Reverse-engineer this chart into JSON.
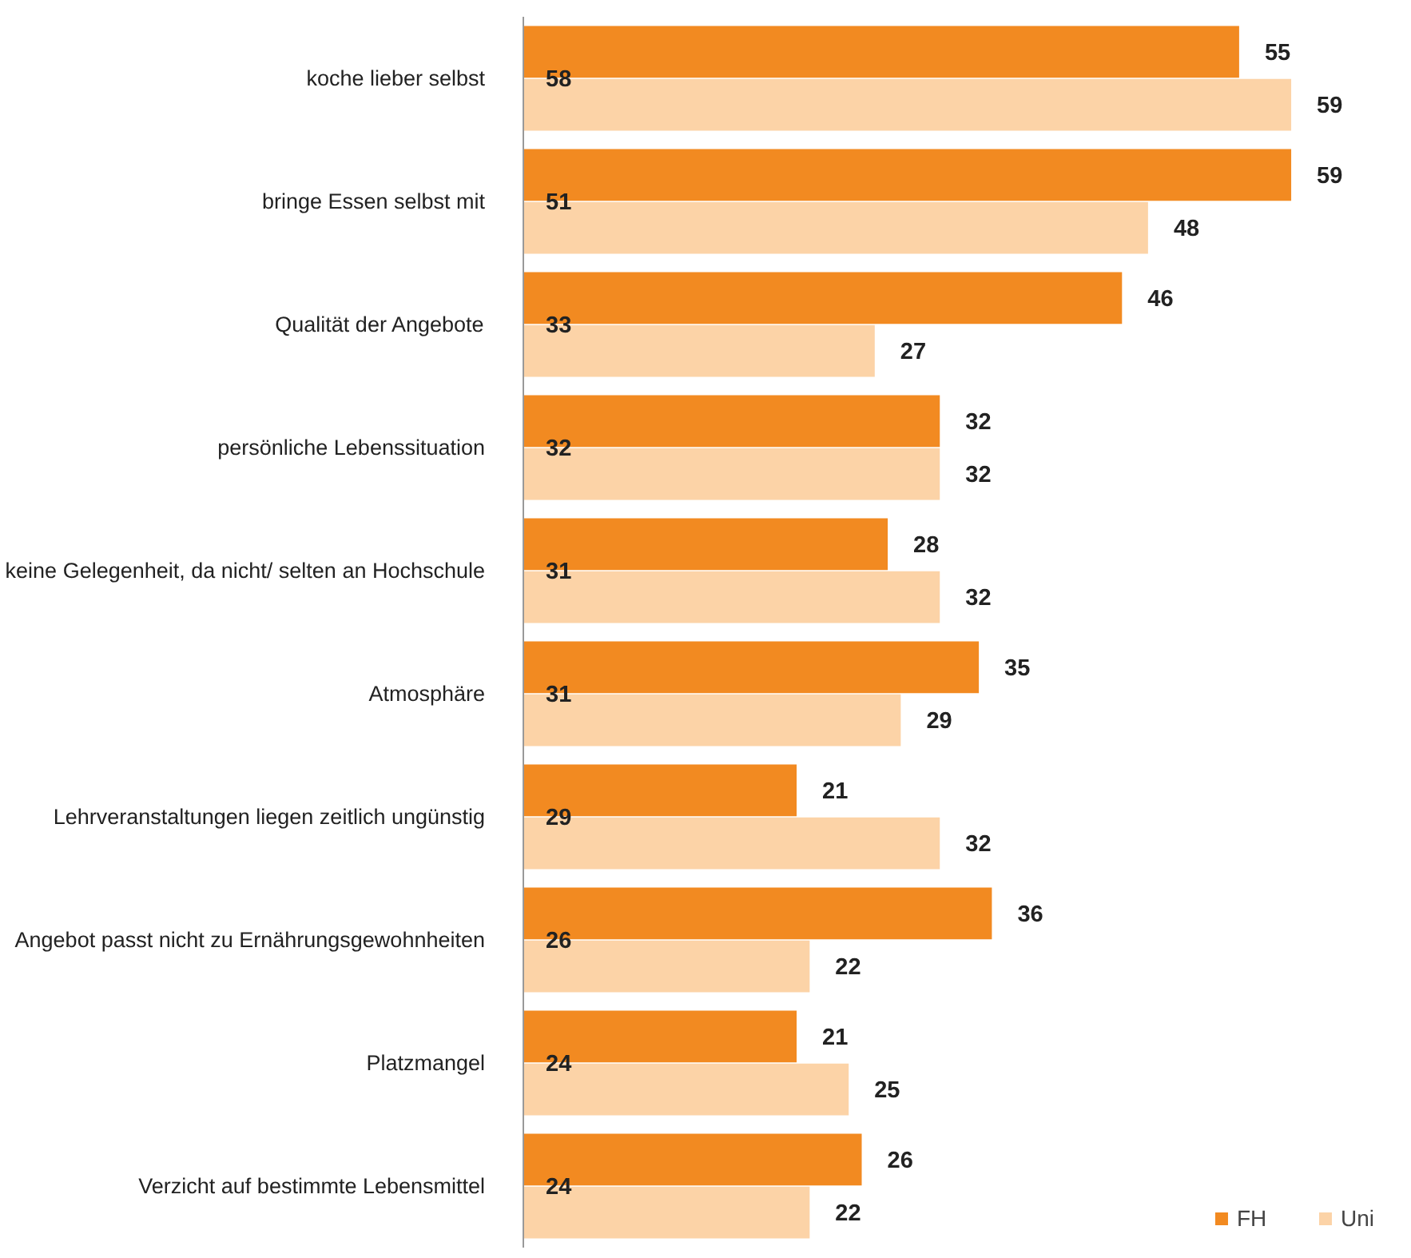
{
  "chart_data": {
    "type": "bar",
    "orientation": "horizontal",
    "categories": [
      "koche lieber selbst",
      "bringe Essen selbst mit",
      "Qualität der Angebote",
      "persönliche Lebenssituation",
      "keine Gelegenheit, da nicht/ selten an Hochschule",
      "Atmosphäre",
      "Lehrveranstaltungen liegen zeitlich ungünstig",
      "Angebot passt nicht zu Ernährungsgewohnheiten",
      "Platzmangel",
      "Verzicht auf bestimmte Lebensmittel"
    ],
    "series": [
      {
        "name": "FH",
        "color": "#f28a21",
        "values": [
          55,
          59,
          46,
          32,
          28,
          35,
          21,
          36,
          21,
          26
        ]
      },
      {
        "name": "Uni",
        "color": "#fcd3a7",
        "values": [
          59,
          48,
          27,
          32,
          32,
          29,
          32,
          22,
          25,
          22
        ]
      }
    ],
    "annotations": [
      {
        "text": "58",
        "y": "koche lieber selbst"
      },
      {
        "text": "51",
        "y": "bringe Essen selbst mit"
      },
      {
        "text": "33",
        "y": "Qualität der Angebote"
      },
      {
        "text": "32",
        "y": "persönliche Lebenssituation"
      },
      {
        "text": "31",
        "y": "keine Gelegenheit, da nicht/ selten an Hochschule"
      },
      {
        "text": "31",
        "y": "Atmosphäre"
      },
      {
        "text": "29",
        "y": "Lehrveranstaltungen liegen zeitlich ungünstig"
      },
      {
        "text": "26",
        "y": "Angebot passt nicht zu Ernährungsgewohnheiten"
      },
      {
        "text": "24",
        "y": "Platzmangel"
      },
      {
        "text": "24",
        "y": "Verzicht auf bestimmte Lebensmittel"
      }
    ],
    "data_labels": true,
    "legend": "bottom right",
    "grid": false,
    "tick_labels": "y"
  }
}
